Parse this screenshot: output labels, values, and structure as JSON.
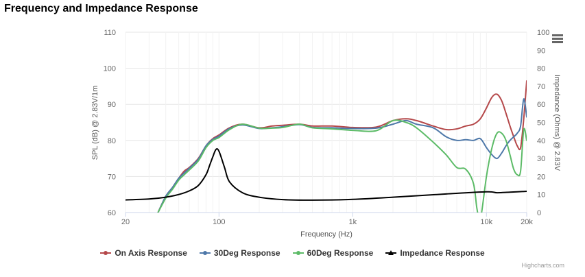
{
  "title": "Frequency and Impedance Response",
  "credits": "Highcharts.com",
  "chart_data": {
    "type": "line",
    "title": "Frequency and Impedance Response",
    "xlabel": "Frequency (Hz)",
    "ylabel": "SPL (dB) @ 2.83V/1m",
    "y2label": "Impedance (Ohms) @ 2.83V",
    "x_scale": "log",
    "xlim": [
      20,
      20000
    ],
    "ylim": [
      60,
      110
    ],
    "y2lim": [
      0,
      100
    ],
    "x_ticks": [
      "20",
      "100",
      "1k",
      "10k",
      "20k"
    ],
    "x_tick_values": [
      20,
      100,
      1000,
      10000,
      20000
    ],
    "y_ticks": [
      "60",
      "70",
      "80",
      "90",
      "100",
      "110"
    ],
    "y2_ticks": [
      "0",
      "10",
      "20",
      "30",
      "40",
      "50",
      "60",
      "70",
      "80",
      "90",
      "100"
    ],
    "grid": true,
    "legend_position": "bottom",
    "series": [
      {
        "name": "On Axis Response",
        "axis": "left",
        "color": "#b5484a",
        "x": [
          35,
          40,
          45,
          50,
          55,
          60,
          70,
          80,
          90,
          100,
          120,
          150,
          200,
          250,
          300,
          400,
          500,
          700,
          1000,
          1500,
          2000,
          2500,
          3000,
          4000,
          5000,
          6000,
          7000,
          8000,
          9000,
          10000,
          11000,
          12000,
          13000,
          14000,
          15000,
          16000,
          17000,
          18000,
          19000,
          20000
        ],
        "y": [
          60,
          64.5,
          67,
          69.5,
          71.5,
          72.5,
          75,
          78.5,
          80.5,
          81.5,
          83.5,
          84.5,
          83.5,
          84,
          84.2,
          84.5,
          84,
          84,
          83.6,
          83.7,
          85.5,
          86,
          85.5,
          84,
          83,
          83.2,
          84,
          84.5,
          86,
          89,
          92,
          92.8,
          91,
          87.5,
          84,
          81,
          78.5,
          78,
          86,
          96.5
        ]
      },
      {
        "name": "30Deg Response",
        "axis": "left",
        "color": "#4e78a9",
        "x": [
          35,
          40,
          45,
          50,
          55,
          60,
          70,
          80,
          90,
          100,
          120,
          150,
          200,
          250,
          300,
          400,
          500,
          700,
          1000,
          1500,
          2000,
          2500,
          3000,
          4000,
          5000,
          6000,
          7000,
          8000,
          9000,
          10000,
          11000,
          12000,
          13000,
          14000,
          15000,
          16000,
          17000,
          18000,
          19000,
          20000
        ],
        "y": [
          60,
          64.5,
          67,
          69.5,
          71,
          72.3,
          74.8,
          78.5,
          80.3,
          81.2,
          83.3,
          84.3,
          83.3,
          83.5,
          83.8,
          84.4,
          83.6,
          83.5,
          83.3,
          83.4,
          84.5,
          85.5,
          84.5,
          83.5,
          81,
          80,
          80.2,
          80,
          80.5,
          78,
          76,
          75,
          76.5,
          78.5,
          80,
          81,
          82,
          84,
          91.5,
          86.5
        ]
      },
      {
        "name": "60Deg Response",
        "axis": "left",
        "color": "#5cbb67",
        "x": [
          35,
          40,
          45,
          50,
          55,
          60,
          70,
          80,
          90,
          100,
          120,
          150,
          200,
          250,
          300,
          400,
          500,
          700,
          1000,
          1500,
          2000,
          2500,
          3000,
          4000,
          5000,
          6000,
          7000,
          8000,
          8500,
          9000,
          10000,
          11000,
          12000,
          13000,
          14000,
          15000,
          16000,
          17000,
          18000,
          19000,
          20000
        ],
        "y": [
          60,
          64,
          66.5,
          69,
          70.5,
          71.8,
          74.3,
          78,
          80,
          80.8,
          83,
          84.5,
          83.4,
          83.4,
          83.6,
          84.5,
          83.5,
          83.2,
          82.8,
          82.7,
          85.5,
          85,
          83.5,
          79.5,
          76,
          72.5,
          72,
          68,
          61,
          58,
          70,
          78,
          82,
          82,
          80,
          76,
          72,
          70.5,
          71.5,
          83,
          80
        ]
      },
      {
        "name": "Impedance Response",
        "axis": "right",
        "color": "#000000",
        "x": [
          20,
          30,
          40,
          50,
          60,
          70,
          80,
          85,
          90,
          95,
          100,
          110,
          120,
          150,
          200,
          300,
          500,
          1000,
          2000,
          5000,
          10000,
          12000,
          15000,
          20000
        ],
        "y": [
          7,
          7.5,
          8.5,
          10,
          12,
          15,
          21,
          26,
          31,
          35,
          34,
          25,
          17,
          11,
          8.5,
          7.2,
          6.9,
          7.3,
          8.5,
          10.3,
          11.5,
          11,
          11.3,
          11.8
        ]
      }
    ]
  }
}
